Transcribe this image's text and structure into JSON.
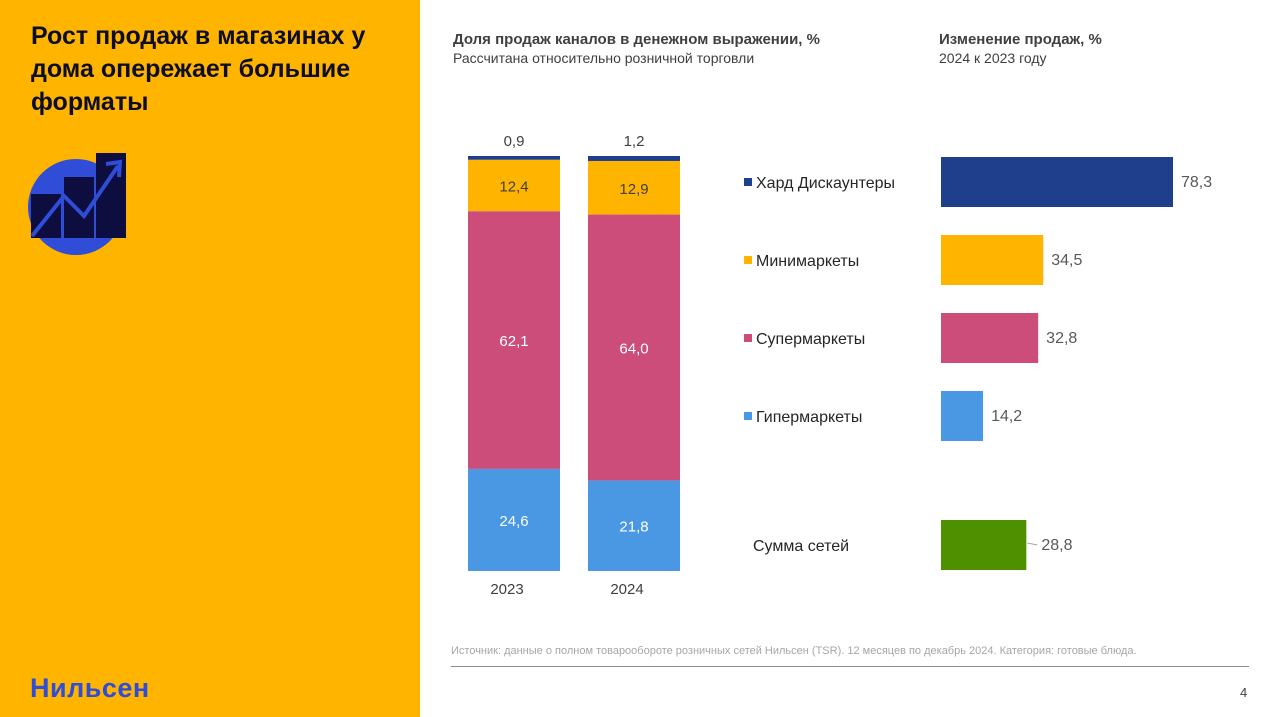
{
  "slide": {
    "title": "Рост продаж в магазинах у дома опережает большие форматы",
    "brand": "Нильсен",
    "page_number": "4",
    "source": "Источник: данные о полном товарообороте розничных сетей Нильсен (TSR). 12 месяцев по декабрь 2024. Категория: готовые блюда.",
    "icon": "growth-chart-icon"
  },
  "colors": {
    "hard_discounters": "#1F3F8C",
    "minimarkets": "#FFB400",
    "supermarkets": "#CC4D7A",
    "hypermarkets": "#4A98E3",
    "total": "#4F9000",
    "panel": "#FFB400",
    "brand": "#2F4DD6"
  },
  "chart_data": [
    {
      "type": "bar",
      "stacked": true,
      "title": "Доля продаж каналов в денежном выражении, %",
      "subtitle": "Рассчитана относительно розничной торговли",
      "categories": [
        "2023",
        "2024"
      ],
      "series": [
        {
          "name": "Гипермаркеты",
          "values": [
            24.6,
            21.8
          ]
        },
        {
          "name": "Супермаркеты",
          "values": [
            62.1,
            64.0
          ]
        },
        {
          "name": "Минимаркеты",
          "values": [
            12.4,
            12.9
          ]
        },
        {
          "name": "Хард Дискаунтеры",
          "values": [
            0.9,
            1.2
          ]
        }
      ],
      "data_labels": {
        "Гипермаркеты": [
          "24,6",
          "21,8"
        ],
        "Супермаркеты": [
          "62,1",
          "64,0"
        ],
        "Минимаркеты": [
          "12,4",
          "12,9"
        ],
        "Хард Дискаунтеры": [
          "0,9",
          "1,2"
        ]
      },
      "grid": false
    },
    {
      "type": "bar",
      "orientation": "horizontal",
      "title": "Изменение продаж, %",
      "subtitle": "2024 к 2023 году",
      "categories": [
        "Хард Дискаунтеры",
        "Минимаркеты",
        "Супермаркеты",
        "Гипермаркеты",
        "Сумма сетей"
      ],
      "values": [
        78.3,
        34.5,
        32.8,
        14.2,
        28.8
      ],
      "value_labels": [
        "78,3",
        "34,5",
        "32,8",
        "14,2",
        "28,8"
      ],
      "legend_markers": [
        true,
        true,
        true,
        true,
        false
      ],
      "grid": false
    }
  ]
}
